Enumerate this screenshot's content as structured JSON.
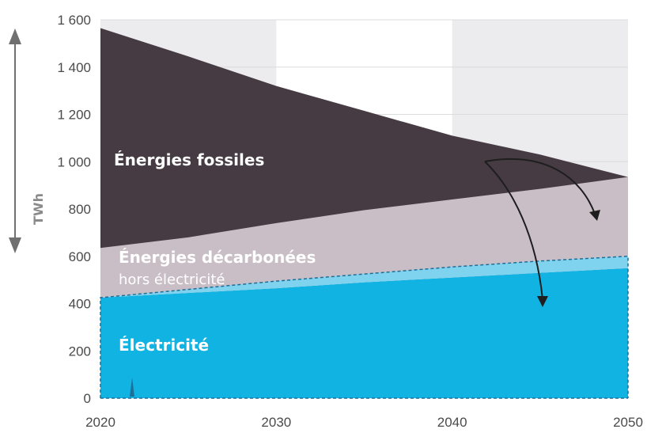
{
  "chart_data": {
    "type": "area",
    "ylabel": "TWh",
    "x_ticks": [
      "2020",
      "2030",
      "2040",
      "2050"
    ],
    "y_ticks": [
      "0",
      "200",
      "400",
      "600",
      "800",
      "1 000",
      "1 200",
      "1 400",
      "1 600"
    ],
    "xlim": [
      2020,
      2050
    ],
    "ylim": [
      0,
      1600
    ],
    "grid": true,
    "series": [
      {
        "name": "Électricité",
        "color": "#11b3e2",
        "x": [
          2020,
          2025,
          2030,
          2035,
          2040,
          2045,
          2050
        ],
        "values": [
          425,
          445,
          465,
          490,
          510,
          530,
          550
        ]
      },
      {
        "name": "Énergies décarbonées",
        "subtitle": "hors électricité",
        "color": "#c9bec6",
        "x": [
          2020,
          2025,
          2030,
          2035,
          2040,
          2045,
          2050
        ],
        "values": [
          210,
          235,
          275,
          305,
          330,
          355,
          385
        ]
      },
      {
        "name": "Énergies fossiles",
        "color": "#463b43",
        "x": [
          2020,
          2025,
          2030,
          2035,
          2040,
          2045,
          2050
        ],
        "values": [
          930,
          765,
          580,
          420,
          270,
          145,
          0
        ]
      }
    ],
    "dashed_line": {
      "x": [
        2020,
        2025,
        2030,
        2035,
        2040,
        2045,
        2050
      ],
      "values": [
        425,
        460,
        495,
        525,
        555,
        580,
        600
      ]
    }
  }
}
